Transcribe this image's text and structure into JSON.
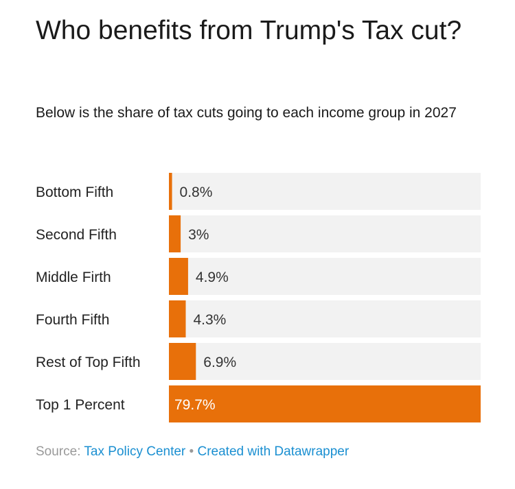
{
  "header": {
    "title": "Who benefits from Trump's Tax cut?",
    "subtitle": "Below is the share of tax cuts going to each income group in 2027"
  },
  "chart_data": {
    "type": "bar",
    "orientation": "horizontal",
    "title": "Who benefits from Trump's Tax cut?",
    "subtitle": "Below is the share of tax cuts going to each income group in 2027",
    "categories": [
      "Bottom Fifth",
      "Second Fifth",
      "Middle Firth",
      "Fourth Fifth",
      "Rest of Top Fifth",
      "Top 1 Percent"
    ],
    "values": [
      0.8,
      3,
      4.9,
      4.3,
      6.9,
      79.7
    ],
    "value_labels": [
      "0.8%",
      "3%",
      "4.9%",
      "4.3%",
      "6.9%",
      "79.7%"
    ],
    "unit": "%",
    "xlim": [
      0,
      79.7
    ],
    "xlabel": "",
    "ylabel": "",
    "bar_color": "#e8700a",
    "track_color": "#f2f2f2"
  },
  "footer": {
    "source_label": "Source:",
    "source_name": "Tax Policy Center",
    "separator": "•",
    "credit": "Created with Datawrapper"
  },
  "colors": {
    "bar": "#e8700a",
    "track": "#f2f2f2",
    "link": "#1a8fd1",
    "muted": "#999999"
  }
}
